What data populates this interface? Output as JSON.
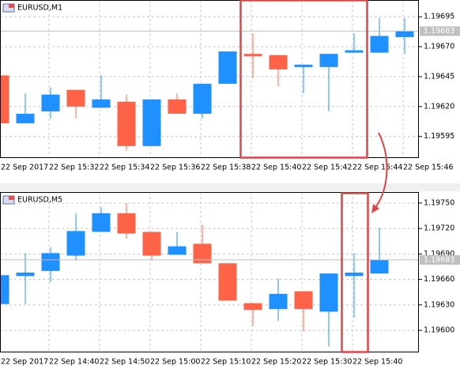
{
  "chart_data": [
    {
      "type": "candlestick",
      "title": "EURUSD,M1",
      "categories": [
        "22 Sep 2017",
        null,
        "22 Sep 15:32",
        null,
        "22 Sep 15:34",
        null,
        "22 Sep 15:36",
        null,
        "22 Sep 15:38",
        null,
        "22 Sep 15:40",
        null,
        "22 Sep 15:42",
        null,
        "22 Sep 15:44",
        null,
        "22 Sep 15:46"
      ],
      "open": [
        1.19646,
        1.19606,
        1.19616,
        1.19634,
        1.19619,
        1.19624,
        1.19587,
        1.19626,
        1.19614,
        1.19639,
        1.19664,
        1.19663,
        1.19653,
        1.19653,
        1.19665,
        1.19665,
        1.19678
      ],
      "high": [
        1.19646,
        1.19631,
        1.19636,
        1.19634,
        1.19646,
        1.1963,
        1.19626,
        1.19631,
        1.19639,
        1.19666,
        1.19681,
        1.19663,
        1.19655,
        1.19664,
        1.19681,
        1.19694,
        1.19694
      ],
      "low": [
        1.19606,
        1.19606,
        1.1961,
        1.1961,
        1.19619,
        1.19583,
        1.19587,
        1.19614,
        1.1961,
        1.19639,
        1.19644,
        1.19637,
        1.19631,
        1.19616,
        1.19665,
        1.19665,
        1.19664
      ],
      "close": [
        1.19606,
        1.19614,
        1.1963,
        1.1962,
        1.19626,
        1.19587,
        1.19626,
        1.19614,
        1.19639,
        1.19666,
        1.19662,
        1.19651,
        1.19655,
        1.19664,
        1.19667,
        1.19679,
        1.19683
      ],
      "up_color": "#1e90ff",
      "down_color": "#ff6347",
      "ylim": [
        1.19577,
        1.19709
      ],
      "yticks": [
        1.19695,
        {
          "value": 1.1967,
          "label": "1.19670"
        },
        1.19645,
        {
          "value": 1.1962,
          "label": "1.19620"
        },
        1.19595
      ],
      "grid": true,
      "last_price": 1.19683
    },
    {
      "type": "candlestick",
      "title": "EURUSD,M5",
      "categories": [
        "22 Sep 2017",
        null,
        "22 Sep 14:40",
        null,
        "22 Sep 14:50",
        null,
        "22 Sep 15:00",
        null,
        "22 Sep 15:10",
        null,
        "22 Sep 15:20",
        null,
        "22 Sep 15:30",
        null,
        "22 Sep 15:40",
        null
      ],
      "open": [
        1.19631,
        1.19664,
        1.1967,
        1.19688,
        1.19716,
        1.19738,
        1.19716,
        1.19689,
        1.19702,
        1.19679,
        1.19632,
        1.19625,
        1.19646,
        1.19622,
        1.19664,
        1.19667
      ],
      "high": [
        1.19665,
        1.19691,
        1.19698,
        1.19738,
        1.19745,
        1.1975,
        1.19716,
        1.19716,
        1.19724,
        1.19679,
        1.19632,
        1.19661,
        1.19646,
        1.19667,
        1.19691,
        1.19721
      ],
      "low": [
        1.19631,
        1.19631,
        1.19657,
        1.19682,
        1.19716,
        1.19708,
        1.19682,
        1.19689,
        1.19679,
        1.19635,
        1.19605,
        1.19611,
        1.19599,
        1.19581,
        1.19615,
        1.19667
      ],
      "close": [
        1.19665,
        1.19668,
        1.19691,
        1.19717,
        1.19738,
        1.19714,
        1.19688,
        1.19699,
        1.19679,
        1.19635,
        1.19624,
        1.19643,
        1.19625,
        1.19667,
        1.19668,
        1.19683
      ],
      "up_color": "#1e90ff",
      "down_color": "#ff6347",
      "ylim": [
        1.19574,
        1.19763
      ],
      "yticks": [
        {
          "value": 1.1975,
          "label": "1.19750"
        },
        {
          "value": 1.1972,
          "label": "1.19720"
        },
        {
          "value": 1.1969,
          "label": "1.19690"
        },
        {
          "value": 1.1966,
          "label": "1.19660"
        },
        {
          "value": 1.1963,
          "label": "1.19630"
        },
        {
          "value": 1.196,
          "label": "1.19600"
        }
      ],
      "grid": true,
      "last_price": 1.19683
    }
  ]
}
